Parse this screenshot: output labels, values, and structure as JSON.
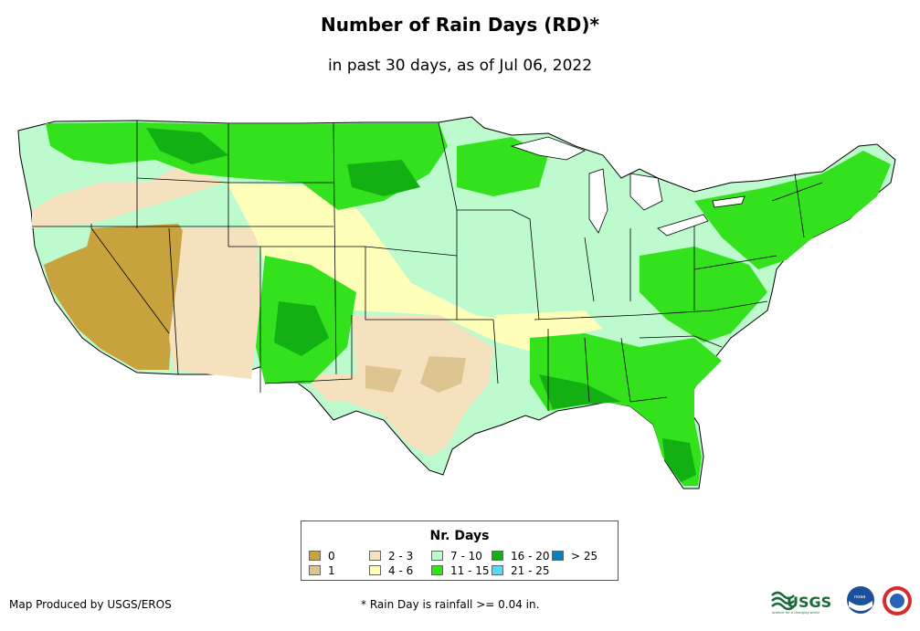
{
  "title": "Number of Rain Days (RD)*",
  "subtitle": "in past 30 days, as of Jul 06, 2022",
  "legend": {
    "title": "Nr. Days",
    "items": [
      {
        "label": "0",
        "color": "#c8a23c"
      },
      {
        "label": "1",
        "color": "#dcc590"
      },
      {
        "label": "2 - 3",
        "color": "#f5e1bd"
      },
      {
        "label": "4 - 6",
        "color": "#ffffb9"
      },
      {
        "label": "7 - 10",
        "color": "#bdfbcf"
      },
      {
        "label": "11 - 15",
        "color": "#33e21c"
      },
      {
        "label": "16 - 20",
        "color": "#12b013"
      },
      {
        "label": "21 - 25",
        "color": "#5dd6f6"
      },
      {
        "label": "> 25",
        "color": "#0a7fbd"
      }
    ]
  },
  "producer": "Map Produced by USGS/EROS",
  "footnote": "* Rain Day is rainfall >= 0.04 in.",
  "logos": {
    "usgs": "USGS",
    "usgs_tagline": "science for a changing world",
    "noaa": "noaa"
  }
}
